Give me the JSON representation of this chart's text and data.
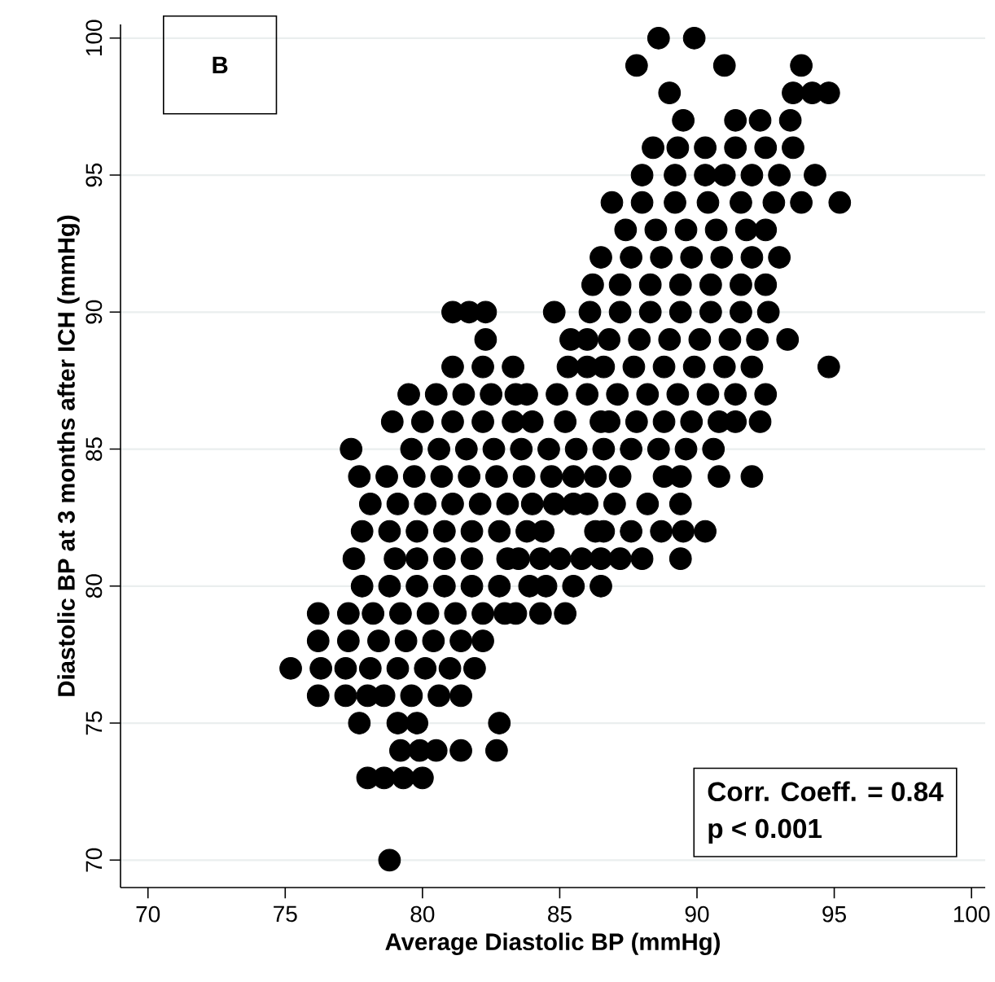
{
  "chart_data": {
    "type": "scatter",
    "xlabel": "Average Diastolic BP (mmHg)",
    "ylabel": "Diastolic BP  at 3 months after ICH (mmHg)",
    "annotations": [
      "B",
      "Corr. Coeff. = 0.84",
      "p < 0.001"
    ],
    "xlim": [
      69,
      100.5
    ],
    "ylim": [
      69,
      100.5
    ],
    "xticks": [
      70,
      75,
      80,
      85,
      90,
      95,
      100
    ],
    "yticks": [
      70,
      75,
      80,
      85,
      90,
      95,
      100
    ],
    "grid": "y",
    "color": "#000000",
    "x": [
      88.6,
      89.9,
      87.8,
      91.0,
      93.8,
      89.0,
      93.5,
      94.2,
      94.8,
      89.5,
      91.4,
      92.3,
      93.4,
      88.4,
      89.3,
      90.3,
      91.4,
      92.5,
      93.5,
      88.0,
      89.2,
      90.3,
      91.0,
      92.0,
      93.0,
      94.3,
      86.9,
      88.0,
      89.2,
      90.4,
      91.6,
      92.8,
      93.8,
      95.2,
      87.4,
      88.5,
      89.6,
      90.7,
      91.8,
      92.5,
      86.5,
      87.6,
      88.7,
      89.8,
      90.9,
      92.0,
      93.0,
      86.2,
      87.2,
      88.3,
      89.4,
      90.5,
      91.6,
      92.5,
      81.1,
      81.7,
      82.3,
      84.8,
      86.1,
      87.2,
      88.3,
      89.4,
      90.5,
      91.6,
      92.6,
      82.3,
      85.4,
      86.0,
      86.8,
      87.9,
      89.0,
      90.1,
      91.2,
      92.2,
      93.3,
      81.1,
      82.2,
      83.3,
      85.3,
      86.0,
      86.6,
      87.7,
      88.8,
      89.9,
      91.0,
      92.0,
      94.8,
      79.5,
      80.5,
      81.5,
      82.5,
      83.4,
      83.8,
      84.9,
      86.0,
      87.1,
      88.2,
      89.3,
      90.4,
      91.4,
      92.5,
      78.9,
      80.0,
      81.1,
      82.2,
      83.3,
      84.0,
      85.2,
      86.5,
      86.8,
      87.8,
      88.8,
      89.8,
      90.8,
      91.4,
      92.3,
      77.4,
      79.6,
      80.6,
      81.6,
      82.6,
      83.6,
      84.6,
      85.6,
      86.6,
      87.6,
      88.6,
      89.6,
      90.6,
      77.7,
      78.7,
      79.7,
      80.7,
      81.7,
      82.7,
      83.7,
      84.7,
      85.5,
      86.3,
      87.2,
      88.8,
      89.4,
      90.8,
      92.0,
      78.1,
      79.1,
      80.1,
      81.1,
      82.1,
      83.1,
      84.0,
      84.8,
      85.5,
      86.0,
      87.0,
      88.2,
      89.4,
      77.8,
      78.8,
      79.8,
      80.8,
      81.8,
      82.8,
      83.8,
      84.4,
      86.3,
      86.6,
      87.6,
      88.7,
      89.5,
      90.3,
      77.5,
      79.0,
      79.8,
      80.8,
      81.8,
      83.1,
      83.5,
      84.3,
      85.0,
      85.8,
      86.5,
      87.2,
      88.0,
      89.4,
      77.8,
      78.8,
      79.8,
      80.8,
      81.8,
      82.8,
      83.9,
      84.5,
      85.5,
      86.5,
      76.2,
      77.3,
      78.2,
      79.2,
      80.2,
      81.2,
      82.2,
      83.0,
      83.4,
      84.3,
      85.2,
      76.2,
      77.3,
      78.4,
      79.4,
      80.4,
      81.4,
      82.2,
      75.2,
      76.3,
      77.2,
      78.1,
      79.1,
      80.1,
      81.0,
      81.9,
      76.2,
      77.2,
      78.0,
      78.6,
      79.6,
      80.6,
      81.4,
      77.7,
      79.1,
      79.8,
      82.8,
      79.2,
      79.9,
      80.5,
      81.4,
      82.7,
      78.0,
      78.6,
      79.3,
      80.0,
      78.8
    ],
    "values": [
      100,
      100,
      99,
      99,
      99,
      98,
      98,
      98,
      98,
      97,
      97,
      97,
      97,
      96,
      96,
      96,
      96,
      96,
      96,
      95,
      95,
      95,
      95,
      95,
      95,
      95,
      94,
      94,
      94,
      94,
      94,
      94,
      94,
      94,
      93,
      93,
      93,
      93,
      93,
      93,
      92,
      92,
      92,
      92,
      92,
      92,
      92,
      91,
      91,
      91,
      91,
      91,
      91,
      91,
      90,
      90,
      90,
      90,
      90,
      90,
      90,
      90,
      90,
      90,
      90,
      89,
      89,
      89,
      89,
      89,
      89,
      89,
      89,
      89,
      89,
      88,
      88,
      88,
      88,
      88,
      88,
      88,
      88,
      88,
      88,
      88,
      88,
      87,
      87,
      87,
      87,
      87,
      87,
      87,
      87,
      87,
      87,
      87,
      87,
      87,
      87,
      86,
      86,
      86,
      86,
      86,
      86,
      86,
      86,
      86,
      86,
      86,
      86,
      86,
      86,
      86,
      85,
      85,
      85,
      85,
      85,
      85,
      85,
      85,
      85,
      85,
      85,
      85,
      85,
      84,
      84,
      84,
      84,
      84,
      84,
      84,
      84,
      84,
      84,
      84,
      84,
      84,
      84,
      84,
      83,
      83,
      83,
      83,
      83,
      83,
      83,
      83,
      83,
      83,
      83,
      83,
      83,
      82,
      82,
      82,
      82,
      82,
      82,
      82,
      82,
      82,
      82,
      82,
      82,
      82,
      82,
      81,
      81,
      81,
      81,
      81,
      81,
      81,
      81,
      81,
      81,
      81,
      81,
      81,
      81,
      80,
      80,
      80,
      80,
      80,
      80,
      80,
      80,
      80,
      80,
      79,
      79,
      79,
      79,
      79,
      79,
      79,
      79,
      79,
      79,
      79,
      78,
      78,
      78,
      78,
      78,
      78,
      78,
      77,
      77,
      77,
      77,
      77,
      77,
      77,
      77,
      76,
      76,
      76,
      76,
      76,
      76,
      76,
      75,
      75,
      75,
      75,
      74,
      74,
      74,
      74,
      74,
      73,
      73,
      73,
      73,
      70
    ]
  }
}
